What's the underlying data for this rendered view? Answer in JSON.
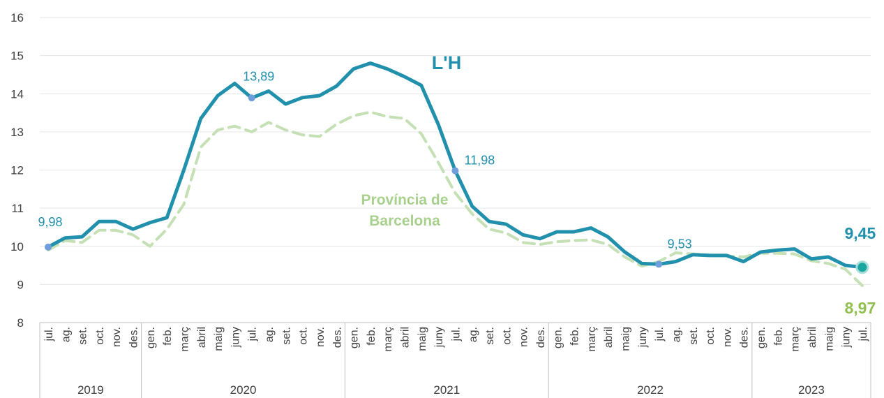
{
  "chart_data": {
    "type": "line",
    "categories": [
      "jul.",
      "ag.",
      "set.",
      "oct.",
      "nov.",
      "des.",
      "gen.",
      "feb.",
      "març",
      "abril",
      "maig",
      "juny",
      "jul.",
      "ag.",
      "set.",
      "oct.",
      "nov.",
      "des.",
      "gen.",
      "feb.",
      "març",
      "abril",
      "maig",
      "juny",
      "jul.",
      "ag.",
      "set.",
      "oct.",
      "nov.",
      "des.",
      "gen.",
      "feb.",
      "març",
      "abril",
      "maig",
      "juny",
      "jul.",
      "ag.",
      "set.",
      "oct.",
      "nov.",
      "des.",
      "gen.",
      "feb.",
      "març",
      "abril",
      "maig",
      "juny",
      "jul."
    ],
    "groups": [
      {
        "label": "2019",
        "size": 6
      },
      {
        "label": "2020",
        "size": 12
      },
      {
        "label": "2021",
        "size": 12
      },
      {
        "label": "2022",
        "size": 12
      },
      {
        "label": "2023",
        "size": 7
      }
    ],
    "series": [
      {
        "name": "L'H",
        "color": "#2190ac",
        "dash": false,
        "values": [
          9.98,
          10.22,
          10.25,
          10.65,
          10.65,
          10.45,
          10.62,
          10.75,
          12.0,
          13.35,
          13.95,
          14.27,
          13.89,
          14.07,
          13.73,
          13.9,
          13.95,
          14.2,
          14.65,
          14.8,
          14.65,
          14.45,
          14.22,
          13.2,
          11.98,
          11.05,
          10.65,
          10.58,
          10.3,
          10.2,
          10.38,
          10.38,
          10.48,
          10.25,
          9.85,
          9.55,
          9.53,
          9.6,
          9.78,
          9.76,
          9.76,
          9.6,
          9.85,
          9.9,
          9.93,
          9.67,
          9.72,
          9.5,
          9.45
        ],
        "value_labels": [
          "9,98",
          null,
          null,
          null,
          null,
          null,
          null,
          null,
          null,
          null,
          null,
          null,
          "13,89",
          null,
          null,
          null,
          null,
          null,
          null,
          null,
          null,
          null,
          null,
          null,
          "11,98",
          null,
          null,
          null,
          null,
          null,
          null,
          null,
          null,
          null,
          null,
          null,
          "9,53",
          null,
          null,
          null,
          null,
          null,
          null,
          null,
          null,
          null,
          null,
          null,
          "9,45"
        ]
      },
      {
        "name": "Província de Barcelona",
        "color": "#c5e0b4",
        "dash": true,
        "values": [
          9.9,
          10.15,
          10.1,
          10.42,
          10.42,
          10.3,
          10.0,
          10.45,
          11.1,
          12.6,
          13.05,
          13.15,
          13.0,
          13.25,
          13.05,
          12.92,
          12.88,
          13.2,
          13.42,
          13.52,
          13.4,
          13.35,
          12.95,
          12.2,
          11.4,
          10.85,
          10.45,
          10.35,
          10.1,
          10.05,
          10.12,
          10.15,
          10.17,
          10.05,
          9.72,
          9.48,
          9.6,
          9.83,
          9.8,
          9.77,
          9.75,
          9.72,
          9.82,
          9.82,
          9.8,
          9.62,
          9.55,
          9.4,
          8.97
        ],
        "value_labels": [
          null,
          null,
          null,
          null,
          null,
          null,
          null,
          null,
          null,
          null,
          null,
          null,
          null,
          null,
          null,
          null,
          null,
          null,
          null,
          null,
          null,
          null,
          null,
          null,
          null,
          null,
          null,
          null,
          null,
          null,
          null,
          null,
          null,
          null,
          null,
          null,
          null,
          null,
          null,
          null,
          null,
          null,
          null,
          null,
          null,
          null,
          null,
          null,
          "8,97"
        ]
      }
    ],
    "ylim": [
      8,
      16
    ],
    "yticks": [
      8,
      9,
      10,
      11,
      12,
      13,
      14,
      15,
      16
    ],
    "grid": true
  }
}
